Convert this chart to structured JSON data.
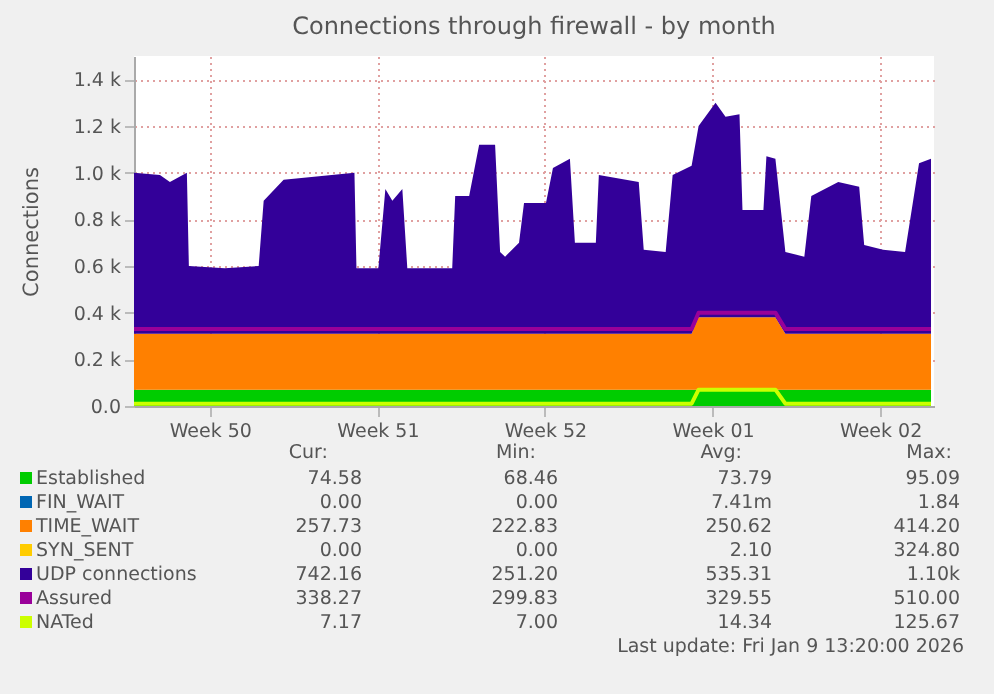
{
  "chart_data": {
    "type": "area",
    "title": "Connections through firewall - by month",
    "ylabel": "Connections",
    "stacked": true,
    "grid": true,
    "legend": "bottom",
    "x": [
      "2025-12-08T08:00",
      "2025-12-09T10:00",
      "2025-12-09T20:00",
      "2025-12-10T13:00",
      "2025-12-10T15:00",
      "2025-12-12T03:00",
      "2025-12-13T13:00",
      "2025-12-13T18:00",
      "2025-12-14T14:00",
      "2025-12-17T13:00",
      "2025-12-17T15:00",
      "2025-12-18T13:00",
      "2025-12-18T20:00",
      "2025-12-19T03:00",
      "2025-12-19T13:00",
      "2025-12-19T18:00",
      "2025-12-21T15:00",
      "2025-12-21T18:00",
      "2025-12-22T08:00",
      "2025-12-22T18:00",
      "2025-12-23T10:00",
      "2025-12-23T15:00",
      "2025-12-23T20:00",
      "2025-12-24T10:00",
      "2025-12-24T15:00",
      "2025-12-25T13:00",
      "2025-12-25T20:00",
      "2025-12-26T13:00",
      "2025-12-26T18:00",
      "2025-12-27T15:00",
      "2025-12-27T18:00",
      "2025-12-29T10:00",
      "2025-12-29T15:00",
      "2025-12-30T13:00",
      "2025-12-30T20:00",
      "2025-12-31T15:00",
      "2025-12-31T22:00",
      "2026-01-01T15:00",
      "2026-01-02T01:00",
      "2026-01-02T15:00",
      "2026-01-02T18:00",
      "2026-01-03T15:00",
      "2026-01-03T18:00",
      "2026-01-04T03:00",
      "2026-01-04T13:00",
      "2026-01-05T08:00",
      "2026-01-05T15:00",
      "2026-01-06T18:00",
      "2026-01-07T15:00",
      "2026-01-07T20:00",
      "2026-01-08T15:00",
      "2026-01-09T13:00",
      "2026-01-10T03:00",
      "2026-01-10T15:00"
    ],
    "xlim": [
      "2025-12-08T08:00",
      "2026-01-10T18:00"
    ],
    "xticks": [
      {
        "value": "2025-12-11T12:00",
        "label": "Week 50"
      },
      {
        "value": "2025-12-18T12:00",
        "label": "Week 51"
      },
      {
        "value": "2025-12-25T12:00",
        "label": "Week 52"
      },
      {
        "value": "2026-01-01T12:00",
        "label": "Week 01"
      },
      {
        "value": "2026-01-08T12:00",
        "label": "Week 02"
      }
    ],
    "ylim": [
      0,
      1500
    ],
    "yticks": [
      {
        "value": 0,
        "label": "0.0"
      },
      {
        "value": 200,
        "label": "0.2 k"
      },
      {
        "value": 400,
        "label": "0.4 k"
      },
      {
        "value": 600,
        "label": "0.6 k"
      },
      {
        "value": 800,
        "label": "0.8 k"
      },
      {
        "value": 1000,
        "label": "1.0 k"
      },
      {
        "value": 1200,
        "label": "1.2 k"
      },
      {
        "value": 1400,
        "label": "1.4 k"
      }
    ],
    "series": [
      {
        "name": "Established",
        "color": "#00cc00",
        "values": [
          70,
          70,
          70,
          70,
          70,
          70,
          70,
          70,
          70,
          70,
          70,
          70,
          70,
          70,
          70,
          70,
          70,
          70,
          70,
          70,
          70,
          70,
          70,
          70,
          70,
          70,
          70,
          70,
          70,
          70,
          70,
          70,
          70,
          70,
          70,
          70,
          70,
          70,
          70,
          70,
          70,
          70,
          70,
          70,
          70,
          70,
          70,
          70,
          70,
          70,
          70,
          70,
          70,
          70
        ]
      },
      {
        "name": "FIN_WAIT",
        "color": "#0066b3",
        "values": [
          null,
          null,
          null,
          null,
          null,
          null,
          null,
          null,
          null,
          null,
          null,
          null,
          null,
          null,
          null,
          null,
          null,
          null,
          null,
          null,
          null,
          null,
          null,
          null,
          null,
          null,
          null,
          null,
          null,
          null,
          null,
          null,
          null,
          null,
          null,
          null,
          null,
          null,
          null,
          null,
          null,
          null,
          null,
          null,
          null,
          null,
          null,
          null,
          null,
          null,
          null,
          null,
          null,
          null
        ]
      },
      {
        "name": "TIME_WAIT",
        "color": "#ff8000",
        "values": [
          240,
          240,
          240,
          240,
          240,
          240,
          240,
          240,
          240,
          240,
          240,
          240,
          240,
          240,
          240,
          240,
          240,
          240,
          240,
          240,
          240,
          240,
          240,
          240,
          240,
          240,
          240,
          240,
          240,
          240,
          240,
          240,
          240,
          240,
          240,
          240,
          310,
          310,
          310,
          310,
          310,
          310,
          310,
          310,
          240,
          240,
          240,
          240,
          240,
          240,
          240,
          240,
          240,
          240
        ]
      },
      {
        "name": "SYN_SENT",
        "color": "#ffcc00",
        "values": [
          null,
          null,
          null,
          null,
          null,
          null,
          null,
          null,
          null,
          null,
          null,
          null,
          null,
          null,
          null,
          null,
          null,
          null,
          null,
          null,
          null,
          null,
          null,
          null,
          null,
          null,
          null,
          null,
          null,
          null,
          null,
          null,
          null,
          null,
          null,
          null,
          null,
          null,
          null,
          null,
          null,
          null,
          null,
          null,
          null,
          null,
          null,
          null,
          null,
          null,
          null,
          null,
          null,
          null
        ]
      },
      {
        "name": "UDP connections",
        "color": "#330099",
        "values": [
          690,
          680,
          650,
          690,
          290,
          280,
          290,
          570,
          660,
          690,
          280,
          280,
          620,
          570,
          620,
          280,
          280,
          590,
          590,
          810,
          810,
          350,
          330,
          390,
          560,
          560,
          710,
          750,
          390,
          390,
          680,
          650,
          360,
          350,
          680,
          720,
          820,
          920,
          860,
          870,
          460,
          460,
          690,
          680,
          350,
          330,
          590,
          650,
          630,
          380,
          360,
          350,
          730,
          750
        ]
      },
      {
        "name": "Assured",
        "color": "#990099",
        "type": "line",
        "values": [
          330,
          330,
          330,
          330,
          330,
          330,
          330,
          330,
          330,
          330,
          330,
          330,
          330,
          330,
          330,
          330,
          330,
          330,
          330,
          330,
          330,
          330,
          330,
          330,
          330,
          330,
          330,
          330,
          330,
          330,
          330,
          330,
          330,
          330,
          330,
          330,
          400,
          400,
          400,
          400,
          400,
          400,
          400,
          400,
          330,
          330,
          330,
          330,
          330,
          330,
          330,
          330,
          330,
          330
        ]
      },
      {
        "name": "NATed",
        "color": "#ccff00",
        "type": "line",
        "values": [
          10,
          10,
          10,
          10,
          10,
          10,
          10,
          10,
          10,
          10,
          10,
          10,
          10,
          10,
          10,
          10,
          10,
          10,
          10,
          10,
          10,
          10,
          10,
          10,
          10,
          10,
          10,
          10,
          10,
          10,
          10,
          10,
          10,
          10,
          10,
          10,
          70,
          70,
          70,
          70,
          70,
          70,
          70,
          70,
          10,
          10,
          10,
          10,
          10,
          10,
          10,
          10,
          10,
          10
        ]
      }
    ],
    "annotations": [
      "Cur:",
      "Min:",
      "Avg:",
      "Max:",
      "74.58",
      "68.46",
      "73.79",
      "95.09",
      "0.00",
      "0.00",
      "7.41m",
      "1.84",
      "257.73",
      "222.83",
      "250.62",
      "414.20",
      "0.00",
      "0.00",
      "2.10",
      "324.80",
      "742.16",
      "251.20",
      "535.31",
      "1.10k",
      "338.27",
      "299.83",
      "329.55",
      "510.00",
      "7.17",
      "7.00",
      "14.34",
      "125.67",
      "Last update: Fri Jan  9 13:20:00 2026"
    ]
  }
}
